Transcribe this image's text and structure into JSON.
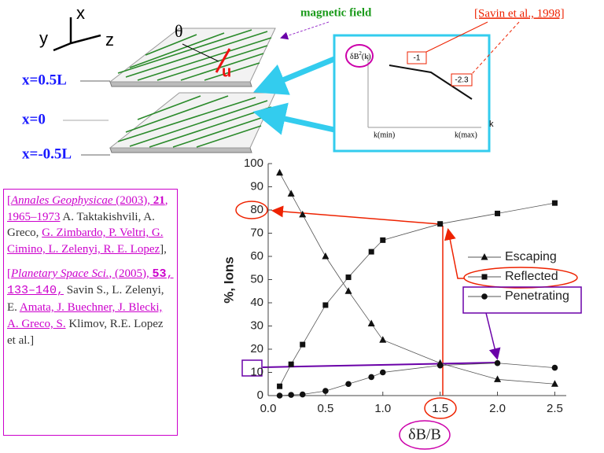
{
  "chart_data": {
    "type": "line",
    "x_label": "δB/B",
    "y_label": "%, Ions",
    "x": [
      0.1,
      0.2,
      0.3,
      0.5,
      0.7,
      0.9,
      1.0,
      1.5,
      2.0,
      2.5
    ],
    "series": [
      {
        "name": "Escaping",
        "color": "#555555",
        "marker": "triangle",
        "values": [
          96,
          87,
          78,
          60,
          45,
          31,
          24,
          14,
          7,
          5
        ]
      },
      {
        "name": "Reflected",
        "color": "#555555",
        "marker": "square",
        "values": [
          4,
          13.5,
          22,
          39,
          51,
          62,
          67,
          74,
          78.5,
          83
        ]
      },
      {
        "name": "Penetrating",
        "color": "#555555",
        "marker": "circle",
        "values": [
          0,
          0.3,
          0.5,
          2,
          5,
          8,
          10,
          13,
          14,
          12
        ]
      }
    ],
    "xlim": [
      0,
      2.6
    ],
    "xticks": [
      {
        "value": 0,
        "label": "0.0"
      },
      0.5,
      {
        "value": 1,
        "label": "1.0"
      },
      1.5,
      {
        "value": 2,
        "label": "2.0"
      },
      2.5
    ],
    "ylim": [
      0,
      100
    ],
    "yticks": [
      0,
      10,
      20,
      30,
      40,
      50,
      60,
      70,
      80,
      90,
      100
    ],
    "grid": false,
    "legend": "right"
  },
  "diagram": {
    "axes": [
      "x",
      "y",
      "z"
    ],
    "angle": "θ",
    "velocity": "u",
    "field_label": "magnetic field",
    "planes": [
      "x=0.5L",
      "x=0",
      "x=-0.5L"
    ],
    "citation": "[Savin et al., 1998]",
    "inset": {
      "y_label": "δB",
      "y_label_sup": "2",
      "y_label_arg": "(k)",
      "x_label": "k",
      "kmin": "k(min)",
      "kmax": "k(max)",
      "slopes": [
        "-1",
        "-2.3"
      ]
    }
  },
  "references": [
    {
      "open": "[",
      "journal": "Annales Geophysicae",
      "year": " (2003), ",
      "volume": "21",
      "pages": ", 1965–1973",
      "authors_plain": " A. Taktakishvili,  A. Greco,",
      "authors_linked": "G. Zimbardo, P. Veltri, G. Cimino, L. Zelenyi, R. E. Lopez",
      "close": "],"
    },
    {
      "open": "[",
      "journal": "Planetary Space Sci.",
      "year": ", (2005), ",
      "volume": "53",
      "pages": ", 133–140,",
      "authors_plain": "Savin S., L. Zelenyi, E.",
      "authors_linked": "Amata, J. Buechner, J. Blecki, A. Greco, S.",
      "close": "Klimov, R.E. Lopez et al.]"
    }
  ]
}
